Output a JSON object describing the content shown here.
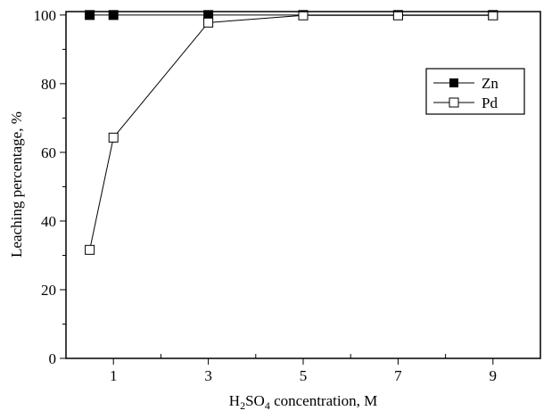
{
  "chart_data": {
    "type": "line",
    "xlabel_parts": {
      "pre": "H",
      "sub1": "2",
      "mid": "SO",
      "sub2": "4",
      "post": " concentration, M"
    },
    "ylabel": "Leaching percentage, %",
    "xlim": [
      0,
      10
    ],
    "ylim": [
      0,
      101
    ],
    "xticks": [
      1,
      3,
      5,
      7,
      9
    ],
    "yticks": [
      0,
      20,
      40,
      60,
      80,
      100
    ],
    "grid": false,
    "legend_position": "top-right",
    "series": [
      {
        "name": "Zn",
        "marker": "filled-square",
        "x": [
          0.5,
          1,
          3,
          5,
          7,
          9
        ],
        "y": [
          100,
          100,
          100,
          100,
          100,
          100
        ]
      },
      {
        "name": "Pd",
        "marker": "open-square",
        "x": [
          0.5,
          1,
          3,
          5,
          7,
          9
        ],
        "y": [
          31.6,
          64.3,
          97.8,
          99.9,
          99.9,
          99.9
        ]
      }
    ]
  }
}
